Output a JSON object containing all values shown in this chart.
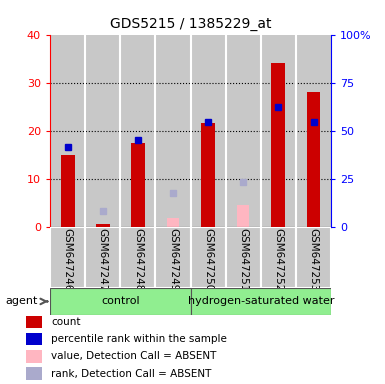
{
  "title": "GDS5215 / 1385229_at",
  "samples": [
    "GSM647246",
    "GSM647247",
    "GSM647248",
    "GSM647249",
    "GSM647250",
    "GSM647251",
    "GSM647252",
    "GSM647253"
  ],
  "red_count": [
    15.0,
    0.5,
    17.5,
    0.0,
    21.5,
    0.0,
    34.0,
    28.0
  ],
  "blue_rank": [
    16.5,
    0.0,
    18.0,
    0.0,
    21.7,
    0.0,
    25.0,
    21.7
  ],
  "pink_value_absent": [
    0.0,
    0.5,
    0.0,
    1.8,
    0.0,
    4.5,
    0.0,
    0.0
  ],
  "lightblue_rank_absent": [
    0.0,
    3.2,
    0.0,
    7.0,
    0.0,
    9.2,
    0.0,
    0.0
  ],
  "left_ylim": [
    0,
    40
  ],
  "right_ylim": [
    0,
    100
  ],
  "left_yticks": [
    0,
    10,
    20,
    30,
    40
  ],
  "right_yticks": [
    0,
    25,
    50,
    75,
    100
  ],
  "right_yticklabels": [
    "0",
    "25",
    "50",
    "75",
    "100%"
  ],
  "red_color": "#CC0000",
  "blue_color": "#0000CC",
  "pink_color": "#FFB6C1",
  "lightblue_color": "#AAAACC",
  "bg_color": "#C8C8C8",
  "plot_bg": "#FFFFFF",
  "green_color": "#90EE90",
  "bar_width": 0.22
}
